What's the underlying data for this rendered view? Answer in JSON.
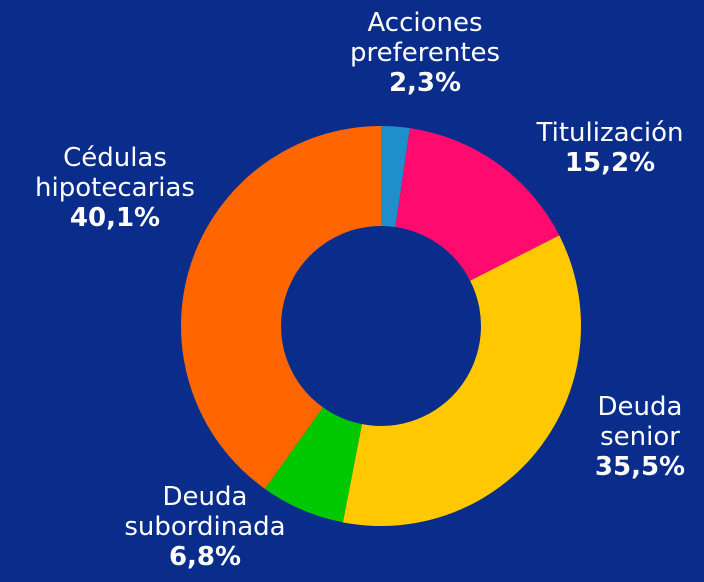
{
  "chart_data": {
    "type": "donut",
    "categories": [
      "Acciones preferentes",
      "Titulización",
      "Deuda senior",
      "Deuda subordinada",
      "Cédulas hipotecarias"
    ],
    "values": [
      2.3,
      15.2,
      35.5,
      6.8,
      40.1
    ],
    "value_labels": [
      "2,3%",
      "15,2%",
      "35,5%",
      "6,8%",
      "40,1%"
    ],
    "colors": [
      "#1e8fcb",
      "#ff0a6e",
      "#ffc800",
      "#00c800",
      "#ff6600"
    ]
  }
}
